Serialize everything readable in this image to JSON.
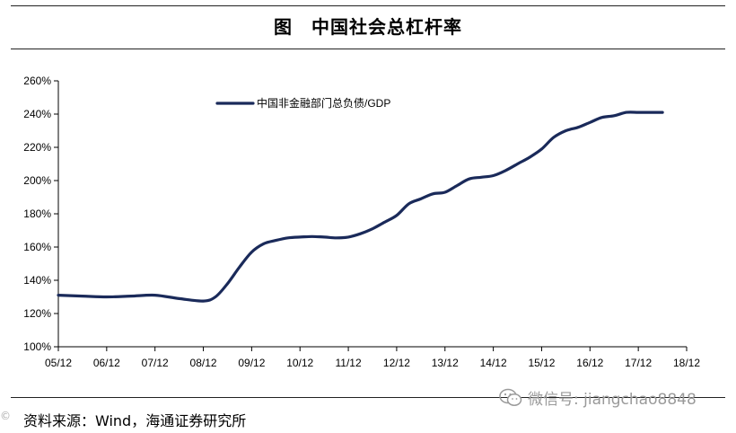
{
  "page": {
    "title": "图　中国社会总杠杆率",
    "source": "资料来源：Wind，海通证券研究所",
    "watermark": "微信号: jiangchao8848",
    "corner_mark": "©"
  },
  "chart_data": {
    "type": "line",
    "title": "图　中国社会总杠杆率",
    "xlabel": "",
    "ylabel": "",
    "ylim": [
      1.0,
      2.6
    ],
    "xlim": [
      0,
      13
    ],
    "y_ticks": [
      1.0,
      1.2,
      1.4,
      1.6,
      1.8,
      2.0,
      2.2,
      2.4,
      2.6
    ],
    "y_tick_labels": [
      "100%",
      "120%",
      "140%",
      "160%",
      "180%",
      "200%",
      "220%",
      "240%",
      "260%"
    ],
    "x_ticks": [
      0,
      1,
      2,
      3,
      4,
      5,
      6,
      7,
      8,
      9,
      10,
      11,
      12,
      13
    ],
    "x_tick_labels": [
      "05/12",
      "06/12",
      "07/12",
      "08/12",
      "09/12",
      "10/12",
      "11/12",
      "12/12",
      "13/12",
      "14/12",
      "15/12",
      "16/12",
      "17/12",
      "18/12"
    ],
    "grid": false,
    "legend_position": "top-left",
    "series": [
      {
        "name": "中国非金融部门总负债/GDP",
        "color": "#1a2a5a",
        "x": [
          0,
          0.5,
          1,
          1.5,
          2,
          2.5,
          3,
          3.25,
          3.5,
          3.75,
          4,
          4.25,
          4.5,
          4.75,
          5,
          5.25,
          5.5,
          5.75,
          6,
          6.25,
          6.5,
          6.75,
          7,
          7.25,
          7.5,
          7.75,
          8,
          8.25,
          8.5,
          8.75,
          9,
          9.25,
          9.5,
          9.75,
          10,
          10.25,
          10.5,
          10.75,
          11,
          11.25,
          11.5,
          11.75,
          12,
          12.25,
          12.5
        ],
        "y": [
          1.31,
          1.305,
          1.3,
          1.305,
          1.31,
          1.29,
          1.275,
          1.3,
          1.38,
          1.48,
          1.57,
          1.62,
          1.64,
          1.655,
          1.66,
          1.663,
          1.66,
          1.655,
          1.66,
          1.68,
          1.71,
          1.75,
          1.79,
          1.86,
          1.89,
          1.92,
          1.93,
          1.97,
          2.01,
          2.02,
          2.03,
          2.06,
          2.1,
          2.14,
          2.19,
          2.26,
          2.3,
          2.32,
          2.35,
          2.38,
          2.39,
          2.41,
          2.41,
          2.41,
          2.41
        ]
      }
    ]
  }
}
